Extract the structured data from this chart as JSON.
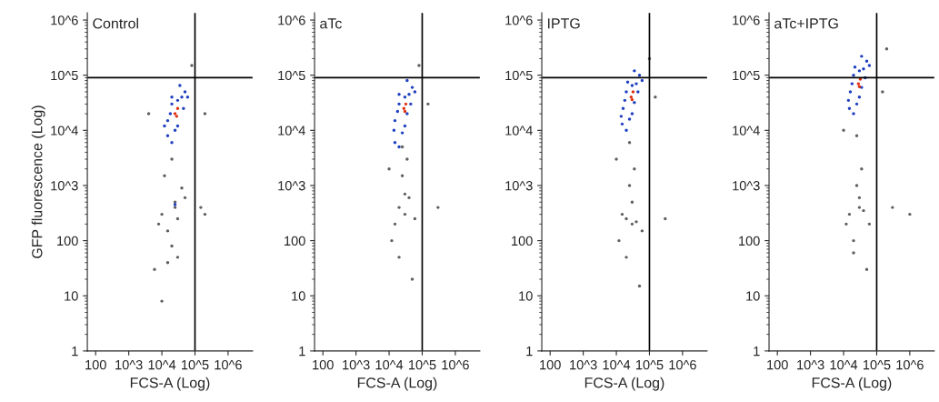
{
  "chart_data": [
    {
      "type": "scatter",
      "title": "Control",
      "xlabel": "FCS-A (Log)",
      "ylabel": "GFP fluorescence (Log)",
      "log": "xy",
      "xlim": [
        56,
        5500000
      ],
      "ylim": [
        1,
        1350000
      ],
      "xticks": [
        100,
        {
          "value": 1000,
          "label": "10^3"
        },
        {
          "value": 10000,
          "label": "10^4"
        },
        {
          "value": 100000,
          "label": "10^5"
        },
        {
          "value": 1000000,
          "label": "10^6"
        }
      ],
      "yticks": [
        1,
        10,
        100,
        {
          "value": 1000,
          "label": "10^3"
        },
        {
          "value": 10000,
          "label": "10^4"
        },
        {
          "value": 100000,
          "label": "10^5"
        },
        {
          "value": 1000000,
          "label": "10^6"
        }
      ],
      "ref_lines": [
        {
          "axis": "x",
          "value": 100000,
          "color": "#000000"
        },
        {
          "axis": "y",
          "value": 90000,
          "color": "#000000"
        }
      ],
      "series": [
        {
          "color": "#606060",
          "x": [
            25000,
            25000,
            10000,
            15000,
            20000,
            50000,
            8000,
            30000,
            12000,
            20000,
            150000,
            200000,
            6000,
            30000,
            10000,
            200000,
            4000,
            80000,
            40000,
            15000
          ],
          "values": [
            400,
            500,
            300,
            150,
            80,
            600,
            200,
            250,
            1500,
            3000,
            400,
            300,
            30,
            50,
            8,
            20000,
            20000,
            150000,
            900,
            40
          ]
        },
        {
          "color": "#2040c0",
          "x": [
            15000,
            20000,
            25000,
            15000,
            20000,
            30000,
            40000,
            50000,
            35000,
            60000,
            20000,
            12000,
            30000,
            18000,
            45000,
            25000
          ],
          "values": [
            8000,
            6000,
            10000,
            15000,
            30000,
            12000,
            40000,
            50000,
            65000,
            40000,
            40000,
            12000,
            35000,
            20000,
            25000,
            450
          ]
        },
        {
          "color": "#e03010",
          "x": [
            25000,
            30000,
            28000
          ],
          "values": [
            20000,
            25000,
            18000
          ]
        }
      ]
    },
    {
      "type": "scatter",
      "title": "aTc",
      "xlabel": "FCS-A (Log)",
      "log": "xy",
      "xlim": [
        56,
        5500000
      ],
      "ylim": [
        1,
        1350000
      ],
      "xticks": [
        100,
        {
          "value": 1000,
          "label": "10^3"
        },
        {
          "value": 10000,
          "label": "10^4"
        },
        {
          "value": 100000,
          "label": "10^5"
        },
        {
          "value": 1000000,
          "label": "10^6"
        }
      ],
      "yticks": [
        1,
        10,
        100,
        {
          "value": 1000,
          "label": "10^3"
        },
        {
          "value": 10000,
          "label": "10^4"
        },
        {
          "value": 100000,
          "label": "10^5"
        },
        {
          "value": 1000000,
          "label": "10^6"
        }
      ],
      "ref_lines": [
        {
          "axis": "x",
          "value": 100000,
          "color": "#000000"
        },
        {
          "axis": "y",
          "value": 90000,
          "color": "#000000"
        }
      ],
      "series": [
        {
          "color": "#606060",
          "x": [
            20000,
            30000,
            15000,
            40000,
            25000,
            60000,
            12000,
            35000,
            150000,
            80000,
            20000,
            50000,
            10000,
            300000,
            30000,
            25000
          ],
          "values": [
            400,
            300,
            200,
            600,
            1500,
            250,
            100,
            3000,
            30000,
            150000,
            50,
            20,
            2000,
            400,
            700,
            5000
          ]
        },
        {
          "color": "#2040c0",
          "x": [
            15000,
            20000,
            25000,
            15000,
            20000,
            30000,
            40000,
            50000,
            35000,
            60000,
            20000,
            14000,
            30000,
            18000,
            45000,
            35000
          ],
          "values": [
            6000,
            5000,
            9000,
            15000,
            30000,
            12000,
            45000,
            60000,
            80000,
            50000,
            45000,
            10000,
            40000,
            22000,
            30000,
            20000
          ]
        },
        {
          "color": "#e03010",
          "x": [
            28000,
            32000,
            30000
          ],
          "values": [
            25000,
            30000,
            22000
          ]
        }
      ]
    },
    {
      "type": "scatter",
      "title": "IPTG",
      "xlabel": "FCS-A (Log)",
      "log": "xy",
      "xlim": [
        56,
        5500000
      ],
      "ylim": [
        1,
        1350000
      ],
      "xticks": [
        100,
        {
          "value": 1000,
          "label": "10^3"
        },
        {
          "value": 10000,
          "label": "10^4"
        },
        {
          "value": 100000,
          "label": "10^5"
        },
        {
          "value": 1000000,
          "label": "10^6"
        }
      ],
      "yticks": [
        1,
        10,
        100,
        {
          "value": 1000,
          "label": "10^3"
        },
        {
          "value": 10000,
          "label": "10^4"
        },
        {
          "value": 100000,
          "label": "10^5"
        },
        {
          "value": 1000000,
          "label": "10^6"
        }
      ],
      "ref_lines": [
        {
          "axis": "x",
          "value": 100000,
          "color": "#000000"
        },
        {
          "axis": "y",
          "value": 90000,
          "color": "#000000"
        }
      ],
      "series": [
        {
          "color": "#606060",
          "x": [
            20000,
            30000,
            15000,
            40000,
            25000,
            60000,
            12000,
            35000,
            150000,
            100000,
            20000,
            50000,
            10000,
            300000,
            30000,
            25000
          ],
          "values": [
            250,
            200,
            300,
            220,
            1000,
            150,
            100,
            2000,
            40000,
            200000,
            50,
            15,
            3000,
            250,
            500,
            6000
          ]
        },
        {
          "color": "#2040c0",
          "x": [
            15000,
            20000,
            25000,
            16000,
            20000,
            30000,
            40000,
            50000,
            35000,
            60000,
            22000,
            14000,
            30000,
            18000,
            45000,
            35000
          ],
          "values": [
            13000,
            10000,
            16000,
            25000,
            50000,
            20000,
            70000,
            100000,
            120000,
            80000,
            75000,
            18000,
            65000,
            35000,
            50000,
            32000
          ]
        },
        {
          "color": "#e03010",
          "x": [
            28000,
            32000,
            30000
          ],
          "values": [
            40000,
            50000,
            36000
          ]
        }
      ]
    },
    {
      "type": "scatter",
      "title": "aTc+IPTG",
      "xlabel": "FCS-A (Log)",
      "log": "xy",
      "xlim": [
        56,
        5500000
      ],
      "ylim": [
        1,
        1350000
      ],
      "xticks": [
        100,
        {
          "value": 1000,
          "label": "10^3"
        },
        {
          "value": 10000,
          "label": "10^4"
        },
        {
          "value": 100000,
          "label": "10^5"
        },
        {
          "value": 1000000,
          "label": "10^6"
        }
      ],
      "yticks": [
        1,
        10,
        100,
        {
          "value": 1000,
          "label": "10^3"
        },
        {
          "value": 10000,
          "label": "10^4"
        },
        {
          "value": 100000,
          "label": "10^5"
        },
        {
          "value": 1000000,
          "label": "10^6"
        }
      ],
      "ref_lines": [
        {
          "axis": "x",
          "value": 100000,
          "color": "#000000"
        },
        {
          "axis": "y",
          "value": 90000,
          "color": "#000000"
        }
      ],
      "series": [
        {
          "color": "#606060",
          "x": [
            15000,
            30000,
            12000,
            40000,
            25000,
            60000,
            20000,
            35000,
            150000,
            200000,
            20000,
            50000,
            10000,
            300000,
            30000,
            25000,
            1000000
          ],
          "values": [
            300,
            400,
            200,
            350,
            1000,
            200,
            100,
            2000,
            50000,
            300000,
            60,
            30,
            10000,
            400,
            600,
            8000,
            300
          ]
        },
        {
          "color": "#2040c0",
          "x": [
            15000,
            20000,
            25000,
            16000,
            20000,
            30000,
            40000,
            50000,
            35000,
            60000,
            22000,
            14000,
            30000,
            18000,
            45000,
            35000
          ],
          "values": [
            25000,
            20000,
            30000,
            50000,
            100000,
            40000,
            130000,
            180000,
            220000,
            150000,
            140000,
            35000,
            120000,
            70000,
            90000,
            60000
          ]
        },
        {
          "color": "#e03010",
          "x": [
            28000,
            32000,
            30000
          ],
          "values": [
            70000,
            85000,
            62000
          ]
        }
      ]
    }
  ]
}
